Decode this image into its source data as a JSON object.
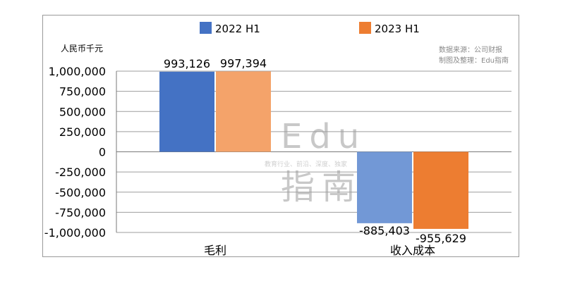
{
  "chart_data": {
    "type": "bar",
    "unit_label": "人民币千元",
    "source_lines": [
      "数据来源：公司财报",
      "制图及整理：Edu指南"
    ],
    "categories": [
      "毛利",
      "收入成本"
    ],
    "series": [
      {
        "name": "2022 H1",
        "values": [
          993126,
          -885403
        ],
        "labels": [
          "993,126",
          "-885,403"
        ]
      },
      {
        "name": "2023 H1",
        "values": [
          997394,
          -955629
        ],
        "labels": [
          "997,394",
          "-955,629"
        ]
      }
    ],
    "ylim": [
      -1000000,
      1000000
    ],
    "yticks": [
      1000000,
      750000,
      500000,
      250000,
      0,
      -250000,
      -500000,
      -750000,
      -1000000
    ],
    "ytick_labels": [
      "1,000,000",
      "750,000",
      "500,000",
      "250,000",
      "0",
      "-250,000",
      "-500,000",
      "-750,000",
      "-1,000,000"
    ],
    "grid": true,
    "legend_position": "top"
  },
  "colors": {
    "2022 H1 毛利": "#4472C4",
    "2023 H1 毛利": "#F4A36A",
    "2022 H1 收入成本": "#7298D6",
    "2023 H1 收入成本": "#ED7D31"
  },
  "watermark": {
    "line1": "Edu",
    "tagline": "教育行业、前沿、深度、独家",
    "line2": "指南"
  }
}
